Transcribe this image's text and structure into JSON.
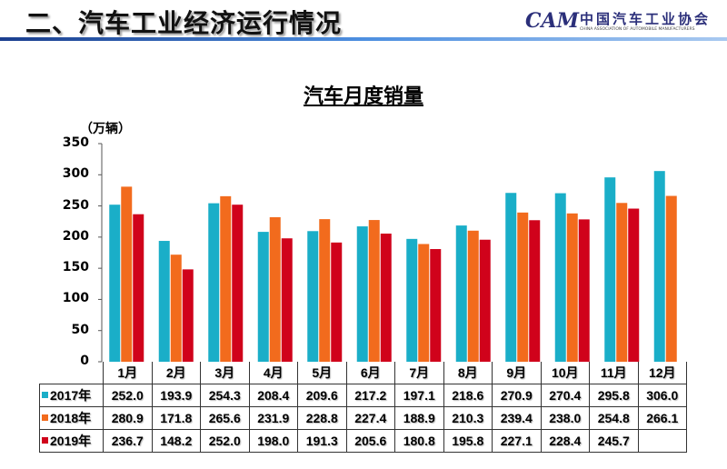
{
  "header": {
    "title": "二、汽车工业经济运行情况",
    "logo_cn": "中国汽车工业协会",
    "logo_en": "CHINA ASSOCIATION OF AUTOMOBILE MANUFACTURERS",
    "logo_mark": "CAM"
  },
  "chart_data": {
    "type": "bar",
    "title": "汽车月度销量",
    "ylabel": "（万辆）",
    "ylim": [
      0,
      350
    ],
    "yticks": [
      0,
      50,
      100,
      150,
      200,
      250,
      300,
      350
    ],
    "categories": [
      "1月",
      "2月",
      "3月",
      "4月",
      "5月",
      "6月",
      "7月",
      "8月",
      "9月",
      "10月",
      "11月",
      "12月"
    ],
    "series": [
      {
        "name": "2017年",
        "color": "#1aaec8",
        "values": [
          252.0,
          193.9,
          254.3,
          208.4,
          209.6,
          217.2,
          197.1,
          218.6,
          270.9,
          270.4,
          295.8,
          306.0
        ]
      },
      {
        "name": "2018年",
        "color": "#f26b1d",
        "values": [
          280.9,
          171.8,
          265.6,
          231.9,
          228.8,
          227.4,
          188.9,
          210.3,
          239.4,
          238.0,
          254.8,
          266.1
        ]
      },
      {
        "name": "2019年",
        "color": "#d0021b",
        "values": [
          236.7,
          148.2,
          252.0,
          198.0,
          191.3,
          205.6,
          180.8,
          195.8,
          227.1,
          228.4,
          245.7,
          null
        ]
      }
    ],
    "legend": "data-table"
  }
}
